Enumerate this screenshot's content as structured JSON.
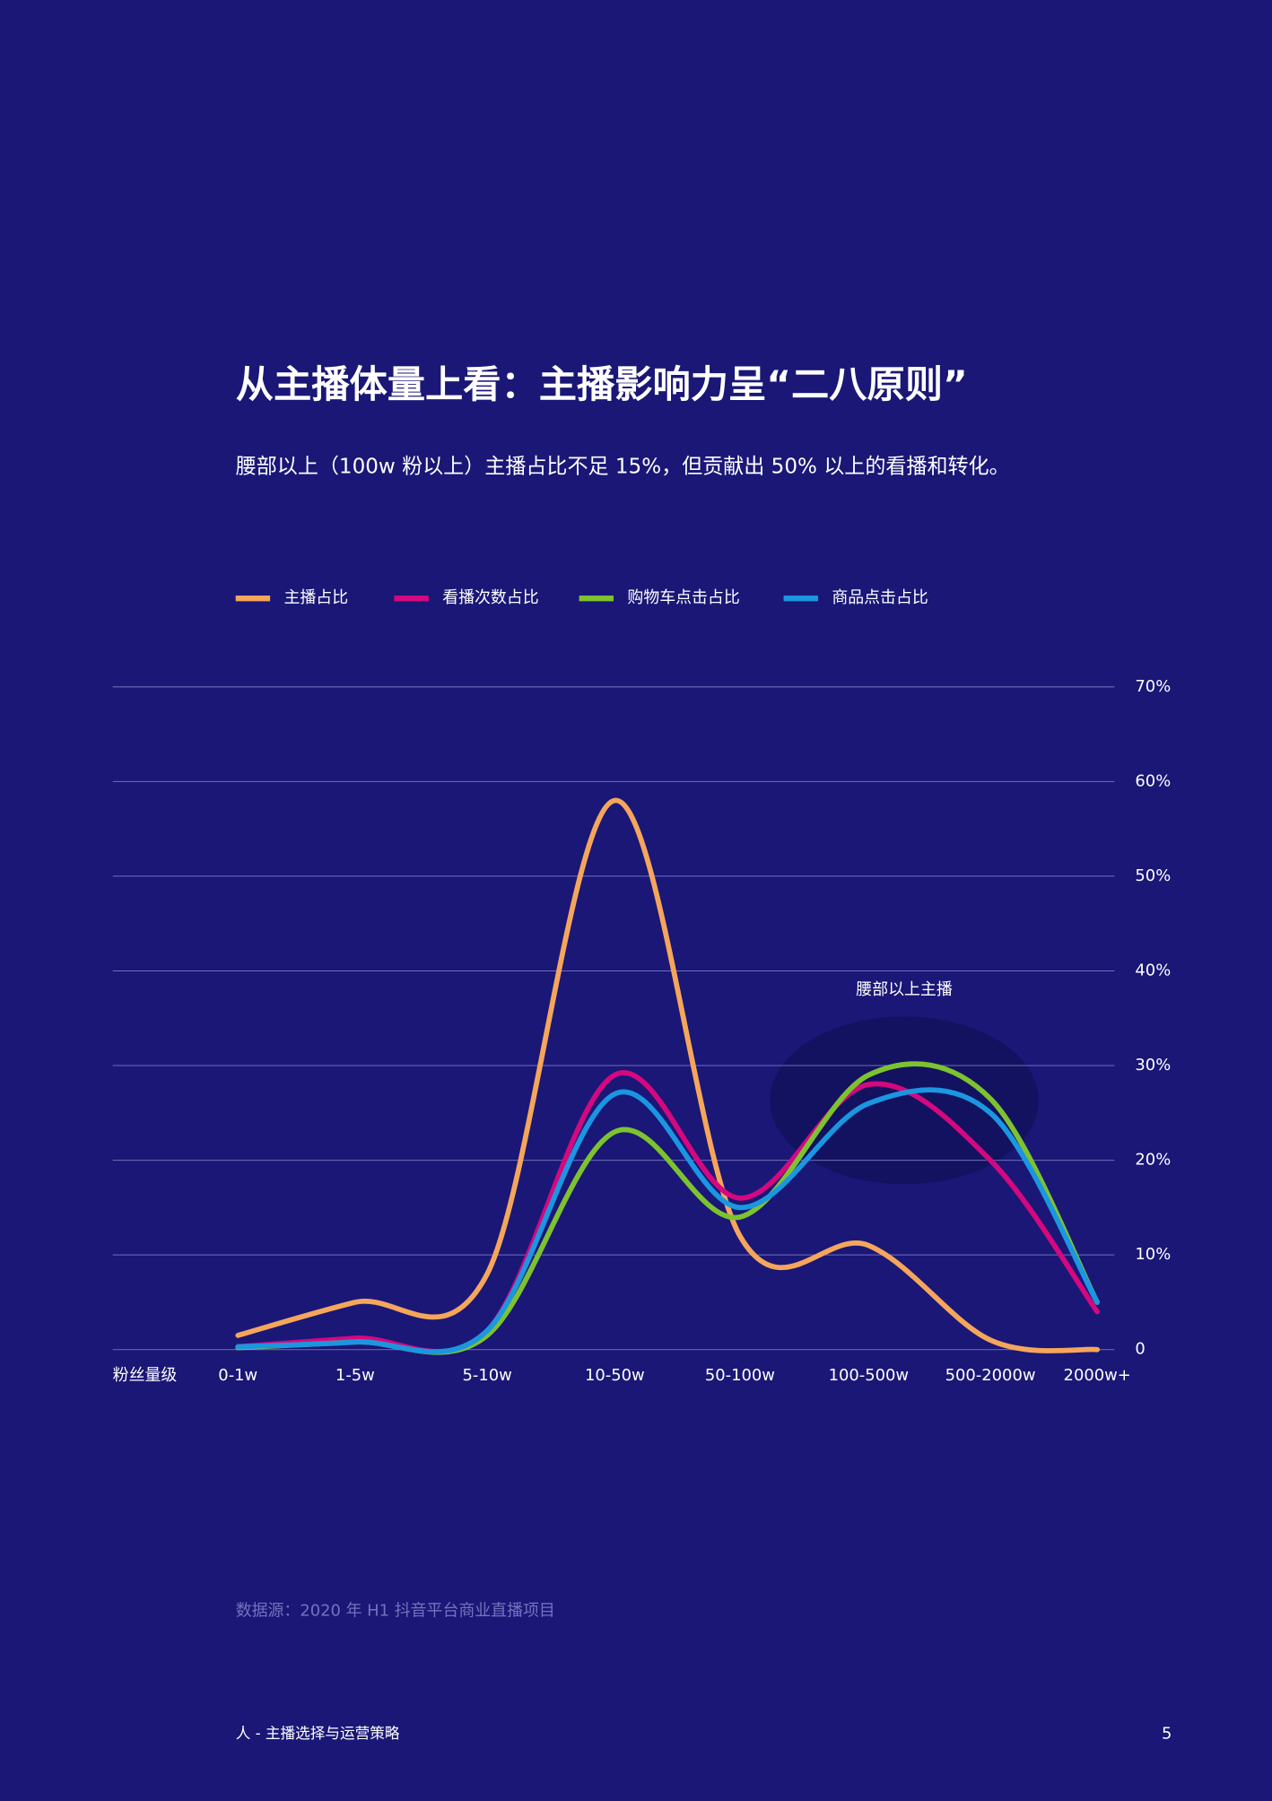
{
  "chart_data": {
    "type": "line",
    "title": "从主播体量上看：主播影响力呈“二八原则”",
    "subtitle": "腰部以上（100w 粉以上）主播占比不足 15%，但贡献出 50% 以上的看播和转化。",
    "x_label": "粉丝量级",
    "annotation": "腰部以上主播",
    "categories": [
      "0-1w",
      "1-5w",
      "5-10w",
      "10-50w",
      "50-100w",
      "100-500w",
      "500-2000w",
      "2000w+"
    ],
    "series": [
      {
        "name": "主播占比",
        "color": "#f5a65b",
        "values": [
          1.5,
          5,
          8,
          58,
          12,
          11,
          1,
          0
        ]
      },
      {
        "name": "看播次数占比",
        "color": "#d4087f",
        "values": [
          0.3,
          1.2,
          2,
          29,
          16,
          28,
          20,
          4
        ]
      },
      {
        "name": "购物车点击占比",
        "color": "#7dc22f",
        "values": [
          0.2,
          0.8,
          1.5,
          23,
          14,
          29,
          26.5,
          5
        ]
      },
      {
        "name": "商品点击占比",
        "color": "#1b96e0",
        "values": [
          0.3,
          0.8,
          2,
          27,
          15,
          26,
          25,
          5
        ]
      }
    ],
    "ylim": [
      0,
      70
    ],
    "yticks": [
      0,
      {
        "value": 10,
        "label": "10%"
      },
      {
        "value": 20,
        "label": "20%"
      },
      {
        "value": 30,
        "label": "30%"
      },
      {
        "value": 40,
        "label": "40%"
      },
      {
        "value": 50,
        "label": "50%"
      },
      {
        "value": 60,
        "label": "60%"
      },
      {
        "value": 70,
        "label": "70%"
      }
    ],
    "grid": true,
    "legend": "top"
  },
  "page": {
    "source": "数据源：2020 年 H1 抖音平台商业直播项目",
    "footer": "人 - 主播选择与运营策略",
    "page_number": "5"
  }
}
